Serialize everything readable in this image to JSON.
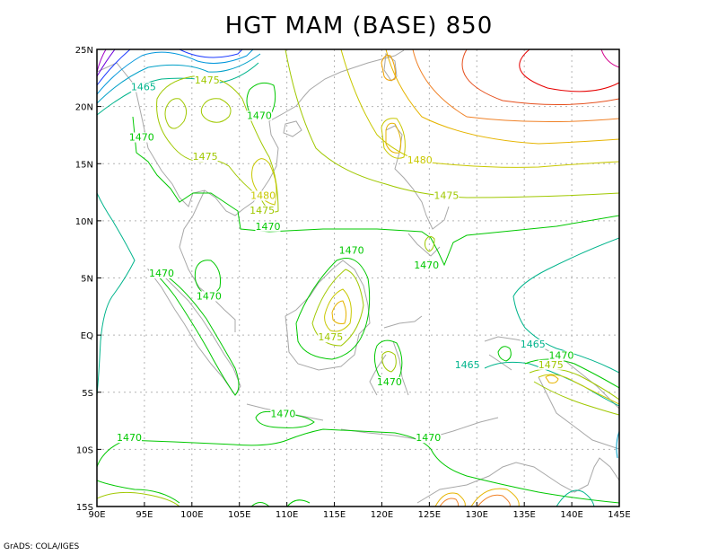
{
  "title": "HGT MAM (BASE) 850",
  "credit": "GrADS: COLA/IGES",
  "map": {
    "lon_range": [
      90,
      145
    ],
    "lat_range": [
      -15,
      25
    ],
    "lon_ticks": [
      {
        "v": 90,
        "label": "90E"
      },
      {
        "v": 95,
        "label": "95E"
      },
      {
        "v": 100,
        "label": "100E"
      },
      {
        "v": 105,
        "label": "105E"
      },
      {
        "v": 110,
        "label": "110E"
      },
      {
        "v": 115,
        "label": "115E"
      },
      {
        "v": 120,
        "label": "120E"
      },
      {
        "v": 125,
        "label": "125E"
      },
      {
        "v": 130,
        "label": "130E"
      },
      {
        "v": 135,
        "label": "135E"
      },
      {
        "v": 140,
        "label": "140E"
      },
      {
        "v": 145,
        "label": "145E"
      }
    ],
    "lat_ticks": [
      {
        "v": 25,
        "label": "25N"
      },
      {
        "v": 20,
        "label": "20N"
      },
      {
        "v": 15,
        "label": "15N"
      },
      {
        "v": 10,
        "label": "10N"
      },
      {
        "v": 5,
        "label": "5N"
      },
      {
        "v": 0,
        "label": "EQ"
      },
      {
        "v": -5,
        "label": "5S"
      },
      {
        "v": -10,
        "label": "10S"
      },
      {
        "v": -15,
        "label": "15S"
      }
    ],
    "contour_labels": [
      {
        "text": "1465",
        "lon": 94.9,
        "lat": 21.5,
        "color": "#00b48c"
      },
      {
        "text": "1475",
        "lon": 101.6,
        "lat": 22.1,
        "color": "#a0c800"
      },
      {
        "text": "1470",
        "lon": 107.1,
        "lat": 19.0,
        "color": "#00c800"
      },
      {
        "text": "1470",
        "lon": 94.7,
        "lat": 17.1,
        "color": "#00c800"
      },
      {
        "text": "1475",
        "lon": 101.4,
        "lat": 15.4,
        "color": "#a0c800"
      },
      {
        "text": "1480",
        "lon": 124.0,
        "lat": 15.1,
        "color": "#c8c800"
      },
      {
        "text": "1480",
        "lon": 107.5,
        "lat": 12.0,
        "color": "#c8c800"
      },
      {
        "text": "1475",
        "lon": 107.4,
        "lat": 10.7,
        "color": "#a0c800"
      },
      {
        "text": "1475",
        "lon": 126.8,
        "lat": 12.0,
        "color": "#a0c800"
      },
      {
        "text": "1470",
        "lon": 108.0,
        "lat": 9.3,
        "color": "#00c800"
      },
      {
        "text": "1470",
        "lon": 116.8,
        "lat": 7.2,
        "color": "#00c800"
      },
      {
        "text": "1470",
        "lon": 124.7,
        "lat": 5.9,
        "color": "#00c800"
      },
      {
        "text": "1470",
        "lon": 96.8,
        "lat": 5.2,
        "color": "#00c800"
      },
      {
        "text": "1470",
        "lon": 101.8,
        "lat": 3.2,
        "color": "#00c800"
      },
      {
        "text": "1475",
        "lon": 114.6,
        "lat": -0.4,
        "color": "#a0c800"
      },
      {
        "text": "1465",
        "lon": 135.9,
        "lat": -1.0,
        "color": "#00b48c"
      },
      {
        "text": "1470",
        "lon": 138.9,
        "lat": -2.0,
        "color": "#00c800"
      },
      {
        "text": "1475",
        "lon": 137.8,
        "lat": -2.8,
        "color": "#a0c800"
      },
      {
        "text": "1465",
        "lon": 129.0,
        "lat": -2.8,
        "color": "#00b48c"
      },
      {
        "text": "1470",
        "lon": 120.8,
        "lat": -4.3,
        "color": "#00c800"
      },
      {
        "text": "1470",
        "lon": 109.6,
        "lat": -7.1,
        "color": "#00c800"
      },
      {
        "text": "1470",
        "lon": 93.4,
        "lat": -9.2,
        "color": "#00c800"
      },
      {
        "text": "1470",
        "lon": 124.9,
        "lat": -9.2,
        "color": "#00c800"
      }
    ]
  }
}
